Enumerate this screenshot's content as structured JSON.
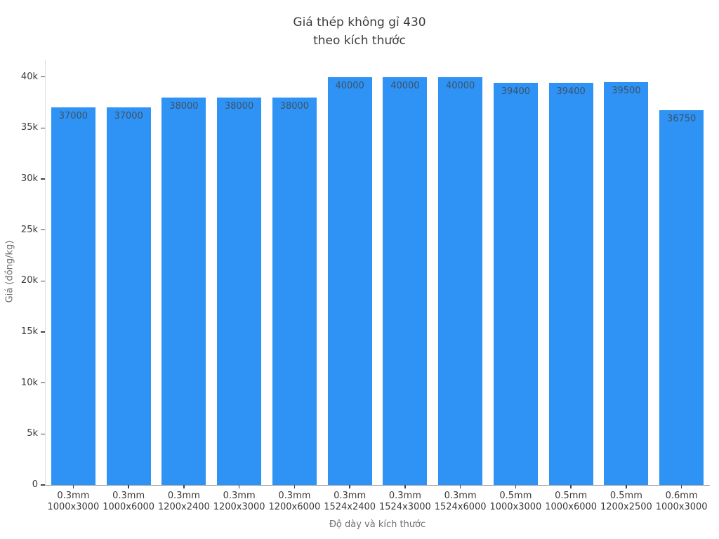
{
  "title": {
    "line1": "Giá thép không gỉ 430",
    "line2": "theo kích thước"
  },
  "chart_data": {
    "type": "bar",
    "title": "Giá thép không gỉ 430 theo kích thước",
    "xlabel": "Độ dày và kích thước",
    "ylabel": "Giá (đồng/kg)",
    "categories": [
      {
        "thickness": "0.3mm",
        "size": "1000x3000"
      },
      {
        "thickness": "0.3mm",
        "size": "1000x6000"
      },
      {
        "thickness": "0.3mm",
        "size": "1200x2400"
      },
      {
        "thickness": "0.3mm",
        "size": "1200x3000"
      },
      {
        "thickness": "0.3mm",
        "size": "1200x6000"
      },
      {
        "thickness": "0.3mm",
        "size": "1524x2400"
      },
      {
        "thickness": "0.3mm",
        "size": "1524x3000"
      },
      {
        "thickness": "0.3mm",
        "size": "1524x6000"
      },
      {
        "thickness": "0.5mm",
        "size": "1000x3000"
      },
      {
        "thickness": "0.5mm",
        "size": "1000x6000"
      },
      {
        "thickness": "0.5mm",
        "size": "1200x2500"
      },
      {
        "thickness": "0.6mm",
        "size": "1000x3000"
      }
    ],
    "values": [
      37000,
      37000,
      38000,
      38000,
      38000,
      40000,
      40000,
      40000,
      39400,
      39400,
      39500,
      36750
    ],
    "bar_labels": [
      "37000",
      "37000",
      "38000",
      "38000",
      "38000",
      "40000",
      "40000",
      "40000",
      "39400",
      "39400",
      "39500",
      "36750"
    ],
    "yticks": {
      "values": [
        0,
        5000,
        10000,
        15000,
        20000,
        25000,
        30000,
        35000,
        40000
      ],
      "labels": [
        "0",
        "5k",
        "10k",
        "15k",
        "20k",
        "25k",
        "30k",
        "35k",
        "40k"
      ]
    },
    "ylim": [
      0,
      41700
    ],
    "grid": false,
    "legend": false,
    "colors": {
      "bar": "#2e93f5",
      "bar_label": "#3d5266",
      "title": "#3b3b3b",
      "tick_label": "#3a3a3a",
      "axis_title": "#6f6f6f"
    }
  }
}
